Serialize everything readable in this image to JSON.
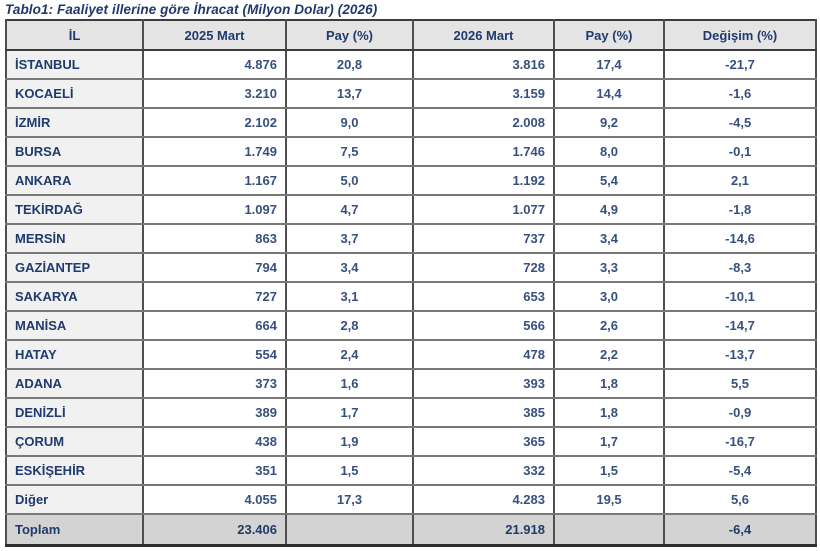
{
  "title": "Tablo1: Faaliyet illerine göre İhracat (Milyon Dolar) (2026)",
  "table": {
    "columns": {
      "il": "İL",
      "mart2025": "2025 Mart",
      "pay2025": "Pay (%)",
      "mart2026": "2026 Mart",
      "pay2026": "Pay (%)",
      "degisim": "Değişim (%)"
    },
    "rows": [
      {
        "il": "İSTANBUL",
        "v2025": "4.876",
        "pay2025": "20,8",
        "v2026": "3.816",
        "pay2026": "17,4",
        "degisim": "-21,7"
      },
      {
        "il": "KOCAELİ",
        "v2025": "3.210",
        "pay2025": "13,7",
        "v2026": "3.159",
        "pay2026": "14,4",
        "degisim": "-1,6"
      },
      {
        "il": "İZMİR",
        "v2025": "2.102",
        "pay2025": "9,0",
        "v2026": "2.008",
        "pay2026": "9,2",
        "degisim": "-4,5"
      },
      {
        "il": "BURSA",
        "v2025": "1.749",
        "pay2025": "7,5",
        "v2026": "1.746",
        "pay2026": "8,0",
        "degisim": "-0,1"
      },
      {
        "il": "ANKARA",
        "v2025": "1.167",
        "pay2025": "5,0",
        "v2026": "1.192",
        "pay2026": "5,4",
        "degisim": "2,1"
      },
      {
        "il": "TEKİRDAĞ",
        "v2025": "1.097",
        "pay2025": "4,7",
        "v2026": "1.077",
        "pay2026": "4,9",
        "degisim": "-1,8"
      },
      {
        "il": "MERSİN",
        "v2025": "863",
        "pay2025": "3,7",
        "v2026": "737",
        "pay2026": "3,4",
        "degisim": "-14,6"
      },
      {
        "il": "GAZİANTEP",
        "v2025": "794",
        "pay2025": "3,4",
        "v2026": "728",
        "pay2026": "3,3",
        "degisim": "-8,3"
      },
      {
        "il": "SAKARYA",
        "v2025": "727",
        "pay2025": "3,1",
        "v2026": "653",
        "pay2026": "3,0",
        "degisim": "-10,1"
      },
      {
        "il": "MANİSA",
        "v2025": "664",
        "pay2025": "2,8",
        "v2026": "566",
        "pay2026": "2,6",
        "degisim": "-14,7"
      },
      {
        "il": "HATAY",
        "v2025": "554",
        "pay2025": "2,4",
        "v2026": "478",
        "pay2026": "2,2",
        "degisim": "-13,7"
      },
      {
        "il": "ADANA",
        "v2025": "373",
        "pay2025": "1,6",
        "v2026": "393",
        "pay2026": "1,8",
        "degisim": "5,5"
      },
      {
        "il": "DENİZLİ",
        "v2025": "389",
        "pay2025": "1,7",
        "v2026": "385",
        "pay2026": "1,8",
        "degisim": "-0,9"
      },
      {
        "il": "ÇORUM",
        "v2025": "438",
        "pay2025": "1,9",
        "v2026": "365",
        "pay2026": "1,7",
        "degisim": "-16,7"
      },
      {
        "il": "ESKİŞEHİR",
        "v2025": "351",
        "pay2025": "1,5",
        "v2026": "332",
        "pay2026": "1,5",
        "degisim": "-5,4"
      },
      {
        "il": "Diğer",
        "v2025": "4.055",
        "pay2025": "17,3",
        "v2026": "4.283",
        "pay2026": "19,5",
        "degisim": "5,6"
      }
    ],
    "total": {
      "il": "Toplam",
      "v2025": "23.406",
      "pay2025": "",
      "v2026": "21.918",
      "pay2026": "",
      "degisim": "-6,4"
    }
  }
}
